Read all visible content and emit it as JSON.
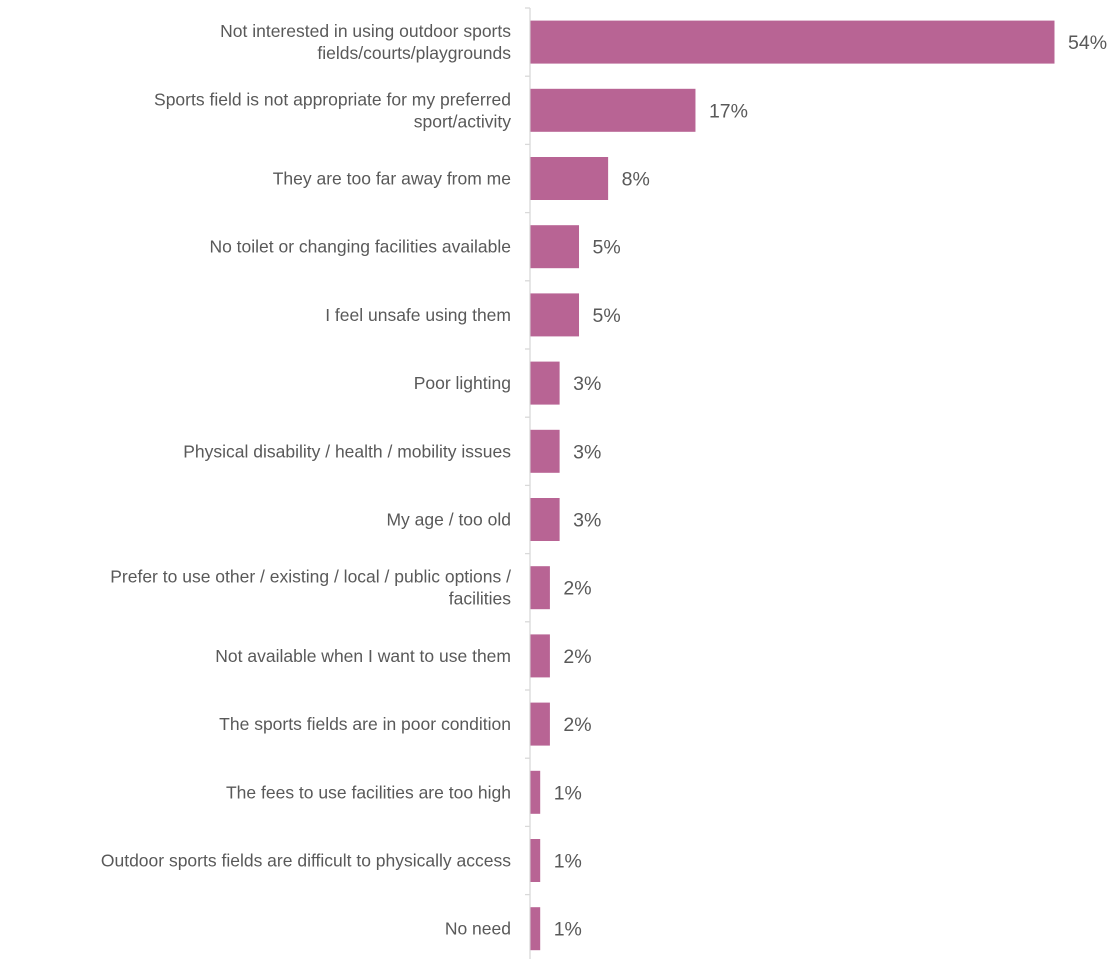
{
  "chart_data": {
    "type": "bar",
    "orientation": "horizontal",
    "categories": [
      "Not interested in using outdoor sports fields/courts/playgrounds",
      "Sports field is not appropriate for my preferred sport/activity",
      "They are too far away from me",
      "No toilet or changing facilities available",
      "I feel unsafe using them",
      "Poor lighting",
      "Physical disability / health / mobility issues",
      "My age / too old",
      "Prefer to use other / existing / local / public options / facilities",
      "Not available when I want to use them",
      "The sports fields are in poor condition",
      "The fees to use facilities are too high",
      "Outdoor sports fields are difficult to physically access",
      "No need"
    ],
    "category_lines": [
      [
        "Not interested in using outdoor sports",
        "fields/courts/playgrounds"
      ],
      [
        "Sports field is not appropriate for my preferred",
        "sport/activity"
      ],
      [
        "They are too far away from me"
      ],
      [
        "No toilet or changing facilities available"
      ],
      [
        "I feel unsafe using them"
      ],
      [
        "Poor lighting"
      ],
      [
        "Physical disability / health / mobility issues"
      ],
      [
        "My age / too old"
      ],
      [
        "Prefer to use other / existing / local / public options /",
        "facilities"
      ],
      [
        "Not available when I want to use them"
      ],
      [
        "The sports fields are in poor condition"
      ],
      [
        "The fees to use facilities are too high"
      ],
      [
        "Outdoor sports fields are difficult to physically access"
      ],
      [
        "No need"
      ]
    ],
    "values": [
      54,
      17,
      8,
      5,
      5,
      3,
      3,
      3,
      2,
      2,
      2,
      1,
      1,
      1
    ],
    "data_labels": [
      "54%",
      "17%",
      "8%",
      "5%",
      "5%",
      "3%",
      "3%",
      "3%",
      "2%",
      "2%",
      "2%",
      "1%",
      "1%",
      "1%"
    ],
    "unit": "%",
    "xlim": [
      0,
      54
    ],
    "bar_color": "#b86494",
    "axis_color": "#d9d9d9",
    "text_color": "#595959",
    "grid": false,
    "legend": "none",
    "title": "",
    "xlabel": "",
    "ylabel": ""
  }
}
